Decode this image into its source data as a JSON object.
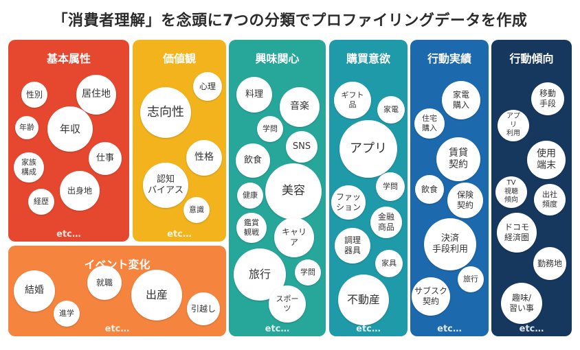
{
  "title": "「消費者理解」を念頭に7つの分類でプロファイリングデータを作成",
  "etc_label": "etc…",
  "colors": {
    "basic": "#e5482f",
    "values": "#f2b31c",
    "interest": "#27a69a",
    "purchase": "#1f9aa9",
    "actions": "#1c69ad",
    "tendency": "#16385e",
    "event": "#f5843e"
  },
  "panels": {
    "basic": {
      "title": "基本属性",
      "bubbles": [
        "性別",
        "居住地",
        "年齢",
        "年収",
        "家族\n構成",
        "仕事",
        "出身地",
        "経歴"
      ]
    },
    "values": {
      "title": "価値観",
      "bubbles": [
        "心理",
        "志向性",
        "性格",
        "認知\nバイアス",
        "意識"
      ]
    },
    "interest": {
      "title": "興味関心",
      "bubbles": [
        "料理",
        "音楽",
        "学問",
        "飲食",
        "SNS",
        "健康",
        "美容",
        "鑑賞\n観戦",
        "キャリ\nア",
        "旅行",
        "学問",
        "スポー\nツ"
      ]
    },
    "purchase": {
      "title": "購買意欲",
      "bubbles": [
        "ギフト\n品",
        "家電",
        "アプリ",
        "ファッ\nション",
        "学問",
        "金融\n商品",
        "調理\n器具",
        "家具",
        "不動産"
      ]
    },
    "actions": {
      "title": "行動実績",
      "bubbles": [
        "家電\n購入",
        "住宅\n購入",
        "賃貸\n契約",
        "飲食",
        "保険\n契約",
        "決済\n手段利用",
        "旅行",
        "サブスク\n契約"
      ]
    },
    "tendency": {
      "title": "行動傾向",
      "bubbles": [
        "移動\n手段",
        "アプ\nリ\n利用",
        "使用\n端末",
        "TV\n視聴\n傾向",
        "出社\n頻度",
        "ドコモ\n経済圏",
        "勤務地",
        "趣味/\n習い事"
      ]
    },
    "event": {
      "title": "イベント変化",
      "bubbles": [
        "結婚",
        "就職",
        "出産",
        "進学",
        "引越し"
      ]
    }
  }
}
